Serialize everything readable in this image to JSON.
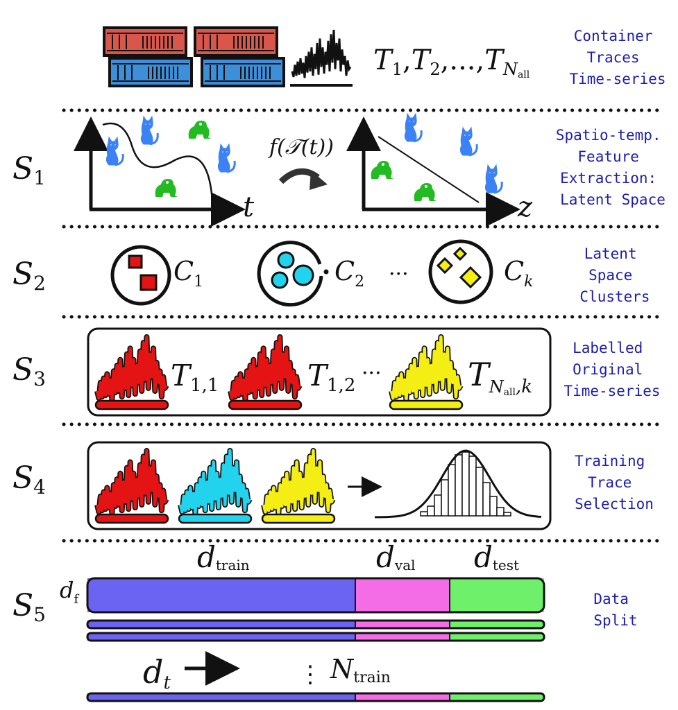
{
  "header": {
    "traces_label": "T",
    "traces_subs": [
      "1",
      "2"
    ],
    "traces_ellipsis": "...",
    "traces_last_sub": "N",
    "traces_last_subsub": "all",
    "label_lines": [
      "Container",
      "Traces",
      "Time-series"
    ]
  },
  "s1": {
    "step": "S",
    "step_sub": "1",
    "function": "f(𝒯(t))",
    "axis_left": "t",
    "axis_right": "z",
    "label_lines": [
      "Spatio-temp.",
      "Feature",
      "Extraction:",
      "Latent Space"
    ]
  },
  "s2": {
    "step": "S",
    "step_sub": "2",
    "clusters": [
      {
        "name": "C",
        "sub": "1"
      },
      {
        "name": "C",
        "sub": "2"
      },
      {
        "name": "C",
        "sub": "k"
      }
    ],
    "ellipsis": "···",
    "label_lines": [
      "Latent",
      "Space",
      "Clusters"
    ]
  },
  "s3": {
    "step": "S",
    "step_sub": "3",
    "series": [
      {
        "name": "T",
        "sub": "1,1"
      },
      {
        "name": "T",
        "sub": "1,2"
      },
      {
        "name": "T",
        "sub": "N",
        "subsub": "all",
        "tail": ",k"
      }
    ],
    "ellipsis": "···",
    "label_lines": [
      "Labelled",
      "Original",
      "Time-series"
    ]
  },
  "s4": {
    "step": "S",
    "step_sub": "4",
    "label_lines": [
      "Training",
      "Trace",
      "Selection"
    ]
  },
  "s5": {
    "step": "S",
    "step_sub": "5",
    "split_labels": [
      {
        "name": "d",
        "sub": "train"
      },
      {
        "name": "d",
        "sub": "val"
      },
      {
        "name": "d",
        "sub": "test"
      }
    ],
    "feature_label": {
      "name": "d",
      "sub": "f"
    },
    "time_label": {
      "name": "d",
      "sub": "t"
    },
    "count_label": {
      "name": "N",
      "sub": "train"
    },
    "vdots": "⋮",
    "label_lines": [
      "Data",
      "Split"
    ]
  },
  "colors": {
    "train": "#6b63f2",
    "val": "#f46ce6",
    "test": "#6ef06a",
    "red_trace": "#e41414",
    "cyan_trace": "#22d3ee",
    "yellow_trace": "#f4ee14",
    "label_text": "#1c1cae",
    "container_red": "#d9574a",
    "container_blue": "#3c8fd8",
    "creature_blue": "#3b82f6",
    "creature_green": "#22bb22"
  }
}
